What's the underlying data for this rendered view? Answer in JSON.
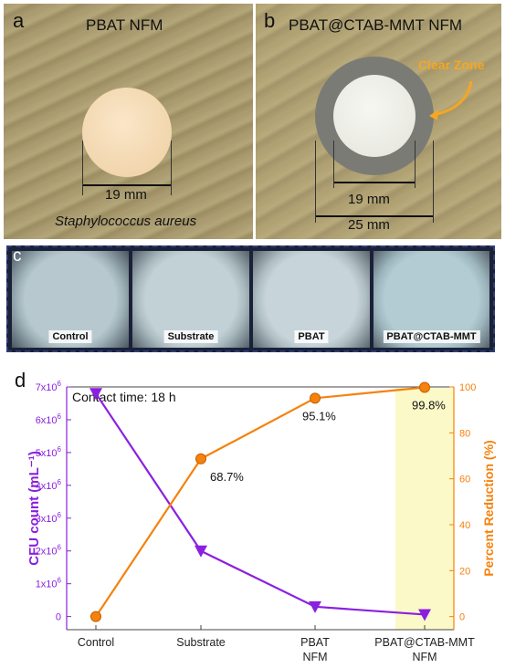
{
  "panel_a": {
    "letter": "a",
    "title": "PBAT NFM",
    "dimension": "19 mm",
    "organism": "Staphylococcus aureus"
  },
  "panel_b": {
    "letter": "b",
    "title": "PBAT@CTAB-MMT NFM",
    "clear_zone_label": "Clear Zone",
    "inner_dimension": "19 mm",
    "outer_dimension": "25 mm"
  },
  "panel_c": {
    "letter": "c",
    "dishes": [
      "Control",
      "Substrate",
      "PBAT",
      "PBAT@CTAB-MMT"
    ]
  },
  "panel_d": {
    "letter": "d"
  },
  "chart_data": {
    "type": "line",
    "annotation": "Contact time: 18 h",
    "categories": [
      "Control",
      "Substrate",
      "PBAT\nNFM",
      "PBAT@CTAB-MMT\nNFM"
    ],
    "category_lines": [
      [
        "Control"
      ],
      [
        "Substrate"
      ],
      [
        "PBAT",
        "NFM"
      ],
      [
        "PBAT@CTAB-MMT",
        "NFM"
      ]
    ],
    "series": [
      {
        "axis": "left",
        "marker": "triangle-down",
        "color": "#8b1fe0",
        "values": [
          6800000,
          2000000,
          300000,
          60000
        ]
      },
      {
        "axis": "right",
        "marker": "circle",
        "color": "#f5820d",
        "values": [
          0,
          68.7,
          95.1,
          99.8
        ],
        "data_labels": [
          "",
          "68.7%",
          "95.1%",
          "99.8%"
        ]
      }
    ],
    "left_axis": {
      "label": "CFU count (mL⁻¹)",
      "ylim": [
        -400000,
        7000000
      ],
      "ticks": [
        0,
        1000000,
        2000000,
        3000000,
        4000000,
        5000000,
        6000000,
        7000000
      ],
      "tick_mantissa": [
        "0",
        "1x10",
        "2x10",
        "3x10",
        "4x10",
        "5x10",
        "6x10",
        "7x10"
      ],
      "tick_exponent": [
        "",
        "6",
        "6",
        "6",
        "6",
        "6",
        "6",
        "6"
      ],
      "color": "#8b1fe0"
    },
    "right_axis": {
      "label": "Percent Reduction (%)",
      "ylim": [
        -5.7,
        100
      ],
      "ticks": [
        0,
        20,
        40,
        60,
        80,
        100
      ],
      "tick_labels": [
        "0",
        "20",
        "40",
        "60",
        "80",
        "100"
      ],
      "color": "#f5820d"
    },
    "highlight_category": 3,
    "highlight_color": "#fbf9c8",
    "grid": false
  }
}
